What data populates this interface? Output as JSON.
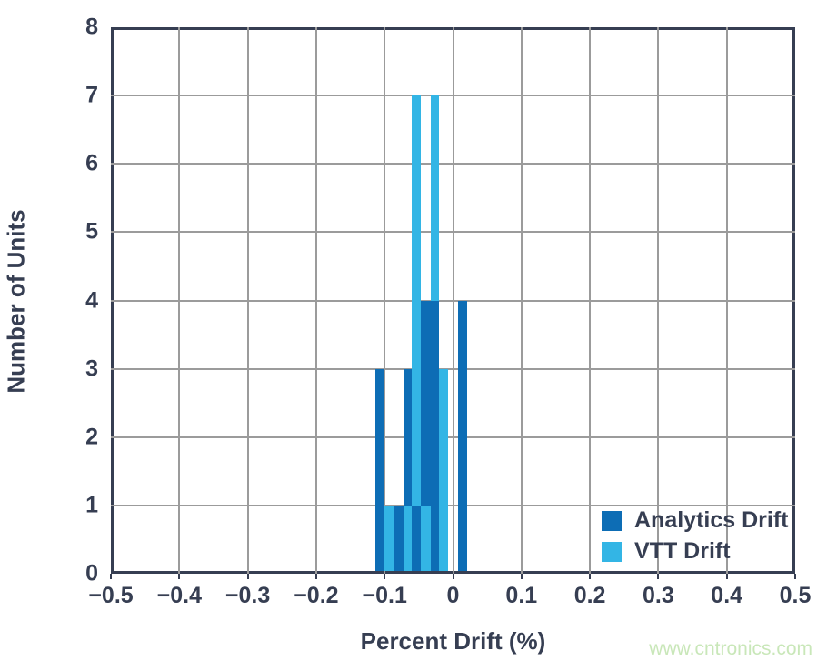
{
  "watermark": "www.cntronics.com",
  "colors": {
    "frame": "#363e52",
    "grid": "#9b9b9b",
    "text": "#363e52",
    "watermark_green": "#c9e7b9",
    "analytics_blue": "#0d6db5",
    "vtt_blue": "#33b5e5"
  },
  "chart_data": {
    "type": "bar",
    "title": "",
    "xlabel": "Percent Drift (%)",
    "ylabel": "Number of Units",
    "xlim": [
      -0.5,
      0.5
    ],
    "ylim": [
      0,
      8
    ],
    "grid": "on",
    "legend_position": "inside-bottom-right",
    "x_ticks": [
      {
        "v": -0.5,
        "label": "−0.5"
      },
      {
        "v": -0.4,
        "label": "−0.4"
      },
      {
        "v": -0.3,
        "label": "−0.3"
      },
      {
        "v": -0.2,
        "label": "−0.2"
      },
      {
        "v": -0.1,
        "label": "−0.1"
      },
      {
        "v": 0,
        "label": "0"
      },
      {
        "v": 0.1,
        "label": "0.1"
      },
      {
        "v": 0.2,
        "label": "0.2"
      },
      {
        "v": 0.3,
        "label": "0.3"
      },
      {
        "v": 0.4,
        "label": "0.4"
      },
      {
        "v": 0.5,
        "label": "0.5"
      }
    ],
    "y_ticks": [
      {
        "v": 0,
        "label": "0"
      },
      {
        "v": 1,
        "label": "1"
      },
      {
        "v": 2,
        "label": "2"
      },
      {
        "v": 3,
        "label": "3"
      },
      {
        "v": 4,
        "label": "4"
      },
      {
        "v": 5,
        "label": "5"
      },
      {
        "v": 6,
        "label": "6"
      },
      {
        "v": 7,
        "label": "7"
      },
      {
        "v": 8,
        "label": "8"
      }
    ],
    "series": [
      {
        "id": "analytics",
        "name": "Analytics Drift",
        "color": "#0d6db5"
      },
      {
        "id": "vtt",
        "name": "VTT Drift",
        "color": "#33b5e5"
      }
    ],
    "bars": [
      {
        "x0": -0.113,
        "x1": -0.1,
        "count": 3,
        "series": "analytics"
      },
      {
        "x0": -0.1,
        "x1": -0.087,
        "count": 1,
        "series": "vtt"
      },
      {
        "x0": -0.087,
        "x1": -0.073,
        "count": 1,
        "series": "analytics"
      },
      {
        "x0": -0.073,
        "x1": -0.06,
        "count": 3,
        "series": "analytics"
      },
      {
        "x0": -0.073,
        "x1": -0.06,
        "count": 1,
        "series": "vtt"
      },
      {
        "x0": -0.06,
        "x1": -0.047,
        "count": 7,
        "series": "vtt"
      },
      {
        "x0": -0.06,
        "x1": -0.047,
        "count": 1,
        "series": "analytics"
      },
      {
        "x0": -0.047,
        "x1": -0.033,
        "count": 4,
        "series": "analytics"
      },
      {
        "x0": -0.047,
        "x1": -0.033,
        "count": 1,
        "series": "vtt"
      },
      {
        "x0": -0.033,
        "x1": -0.02,
        "count": 7,
        "series": "vtt"
      },
      {
        "x0": -0.033,
        "x1": -0.02,
        "count": 4,
        "series": "analytics"
      },
      {
        "x0": -0.02,
        "x1": -0.007,
        "count": 3,
        "series": "vtt"
      },
      {
        "x0": 0.007,
        "x1": 0.02,
        "count": 4,
        "series": "analytics"
      }
    ]
  }
}
